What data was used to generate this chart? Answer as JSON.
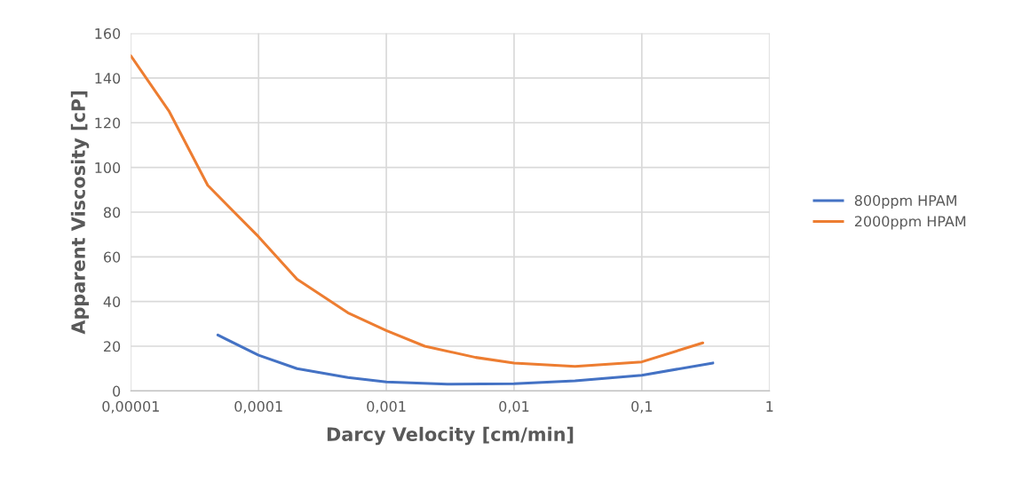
{
  "chart_data": {
    "type": "line",
    "xlabel": "Darcy Velocity [cm/min]",
    "ylabel": "Apparent Viscosity [cP]",
    "log": "x",
    "xlim": [
      1e-05,
      1
    ],
    "xticks": [
      {
        "value": 1e-05,
        "label": "0,00001"
      },
      {
        "value": 0.0001,
        "label": "0,0001"
      },
      {
        "value": 0.001,
        "label": "0,001"
      },
      {
        "value": 0.01,
        "label": "0,01"
      },
      {
        "value": 0.1,
        "label": "0,1"
      },
      1
    ],
    "ylim": [
      0,
      160
    ],
    "yticks": [
      0,
      20,
      40,
      60,
      80,
      100,
      120,
      140,
      160
    ],
    "grid": true,
    "legend": "right",
    "marker": "none",
    "line_style": "solid",
    "series": [
      {
        "name": "800ppm HPAM",
        "color": "#4472c4",
        "x": [
          4.8e-05,
          0.0001,
          0.0002,
          0.0005,
          0.001,
          0.003,
          0.01,
          0.03,
          0.1,
          0.36
        ],
        "values": [
          25,
          16,
          10,
          6,
          4,
          3,
          3.2,
          4.5,
          7,
          12.5
        ]
      },
      {
        "name": "2000ppm HPAM",
        "color": "#ed7d31",
        "x": [
          1e-05,
          2e-05,
          4e-05,
          0.0001,
          0.0002,
          0.0005,
          0.001,
          0.002,
          0.005,
          0.01,
          0.03,
          0.1,
          0.3
        ],
        "values": [
          150,
          125,
          92,
          69,
          50,
          35,
          27,
          20,
          15,
          12.5,
          11,
          13,
          21.5
        ]
      }
    ]
  }
}
